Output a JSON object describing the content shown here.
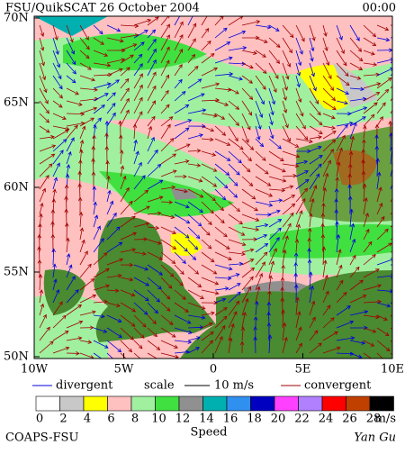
{
  "header": {
    "title": "FSU/QuikSCAT  26 October 2004",
    "time": "00:00"
  },
  "map": {
    "lat_labels": [
      "70N",
      "65N",
      "60N",
      "55N",
      "50N"
    ],
    "lon_labels": [
      "10W",
      "5W",
      "0",
      "5E",
      "10E"
    ]
  },
  "legend": {
    "divergent": "divergent",
    "scale": "scale",
    "scale_value": "10 m/s",
    "convergent": "convergent",
    "divergent_color": "#0000dd",
    "convergent_color": "#a00000"
  },
  "colorbar": {
    "labels": [
      0,
      2,
      4,
      6,
      8,
      10,
      12,
      14,
      16,
      18,
      20,
      22,
      24,
      26,
      28
    ],
    "colors": [
      "#ffffff",
      "#c8c8c8",
      "#ffff00",
      "#ffc0c0",
      "#a0f0a0",
      "#40e040",
      "#909090",
      "#00b0b0",
      "#3090f0",
      "#0000c0",
      "#ff40ff",
      "#b080ff",
      "#ff0000",
      "#c04000",
      "#000000"
    ],
    "unit": "m/s",
    "title": "Speed"
  },
  "footer": {
    "left": "COAPS-FSU",
    "right": "Yan Gu"
  }
}
